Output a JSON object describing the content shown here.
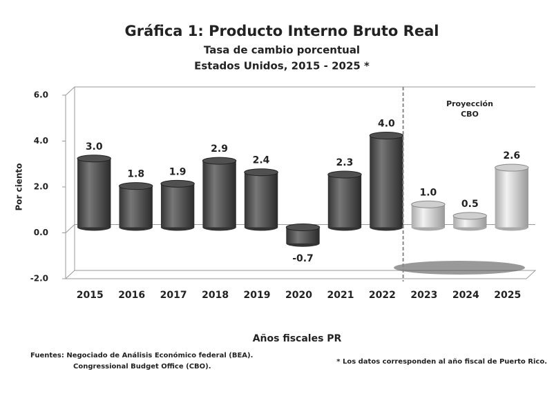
{
  "chart_data": {
    "type": "bar",
    "title": "Gráfica 1: Producto Interno Bruto Real",
    "subtitle": [
      "Tasa de cambio porcentual",
      "Estados Unidos, 2015 - 2025 *"
    ],
    "x_label": "Años fiscales PR",
    "y_label": "Por ciento",
    "categories": [
      "2015",
      "2016",
      "2017",
      "2018",
      "2019",
      "2020",
      "2021",
      "2022",
      "2023",
      "2024",
      "2025"
    ],
    "values": [
      3.0,
      1.8,
      1.9,
      2.9,
      2.4,
      -0.7,
      2.3,
      4.0,
      1.0,
      0.5,
      2.6
    ],
    "value_labels": [
      "3.0",
      "1.8",
      "1.9",
      "2.9",
      "2.4",
      "-0.7",
      "2.3",
      "4.0",
      "1.0",
      "0.5",
      "2.6"
    ],
    "colors": [
      "#505050",
      "#505050",
      "#505050",
      "#505050",
      "#505050",
      "#505050",
      "#505050",
      "#505050",
      "#cfcfcf",
      "#cfcfcf",
      "#cfcfcf"
    ],
    "ylim": [
      -2,
      6
    ],
    "yticks": [
      {
        "value": -2,
        "label": "-2.0"
      },
      {
        "value": 0,
        "label": "0.0"
      },
      {
        "value": 2,
        "label": "2.0"
      },
      {
        "value": 4,
        "label": "4.0"
      },
      {
        "value": 6,
        "label": "6.0"
      }
    ],
    "annotation": [
      "Proyección",
      "CBO"
    ],
    "sources": [
      "Fuentes: Negociado de Análisis Económico federal (BEA).",
      "Congressional Budget Office (CBO)."
    ],
    "footnote": "* Los datos corresponden al año fiscal de Puerto Rico."
  }
}
